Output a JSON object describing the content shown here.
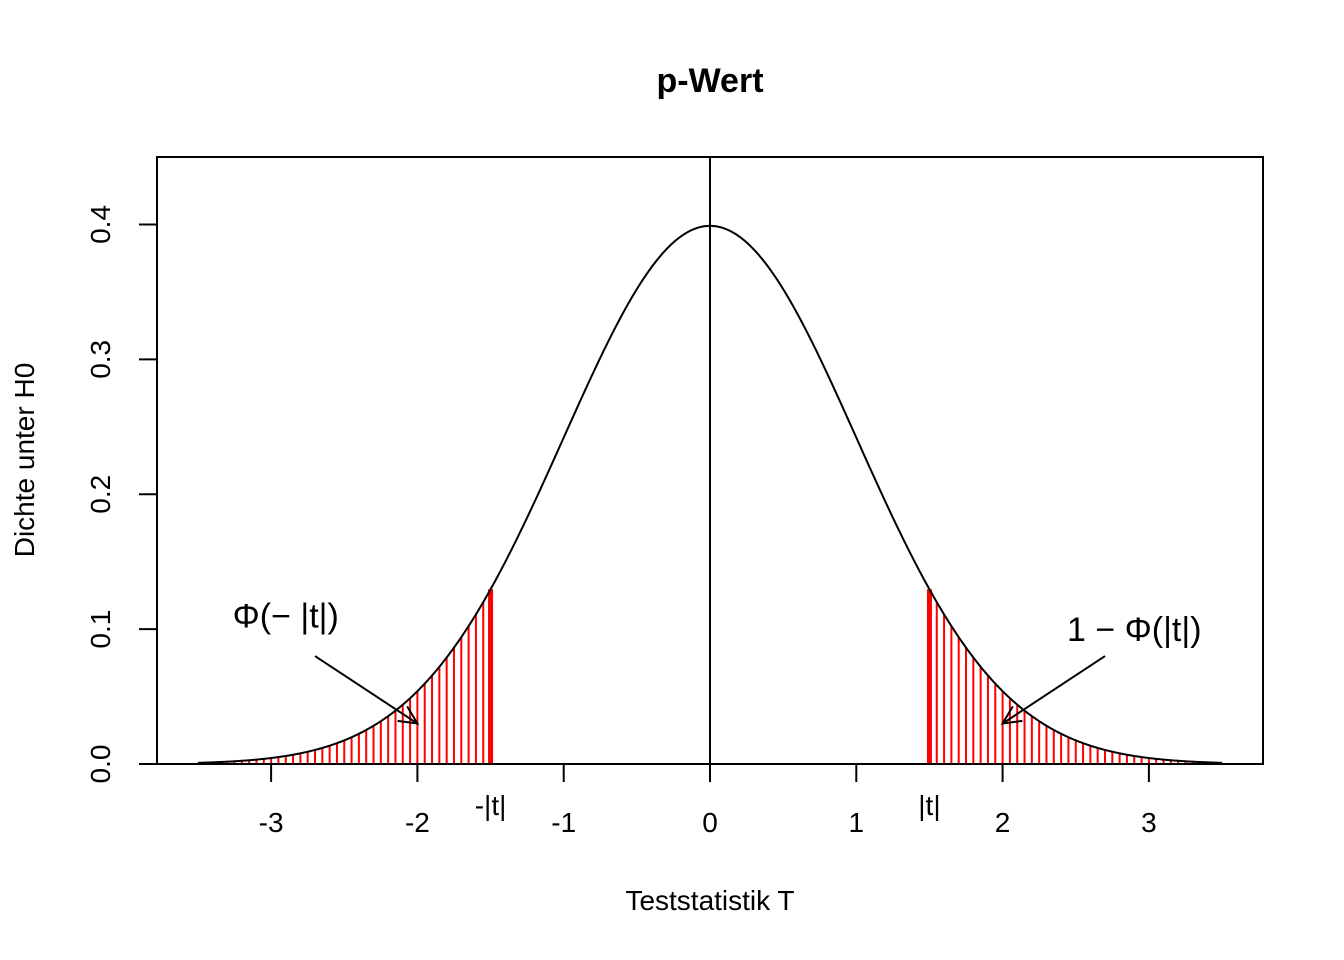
{
  "chart_data": {
    "type": "line",
    "title": "p-Wert",
    "xlabel": "Teststatistik T",
    "ylabel": "Dichte unter H0",
    "xlim": [
      -3.78,
      3.78
    ],
    "ylim": [
      0,
      0.45
    ],
    "grid": false,
    "legend": "none",
    "x_ticks": [
      -3,
      -2,
      -1,
      0,
      1,
      2,
      3
    ],
    "x_tick_labels": [
      "-3",
      "-2",
      "-1",
      "0",
      "1",
      "2",
      "3"
    ],
    "y_ticks": [
      0.0,
      0.1,
      0.2,
      0.3,
      0.4
    ],
    "y_tick_labels": [
      "0.0",
      "0.1",
      "0.2",
      "0.3",
      "0.4"
    ],
    "curve": {
      "function": "standard normal density",
      "x_range": [
        -3.5,
        3.5
      ],
      "color": "#000000"
    },
    "vertical_line_x": 0,
    "t_value": 1.5,
    "t_labels": {
      "negative": "-|t|",
      "positive": "|t|"
    },
    "shading": {
      "color": "#ff0000",
      "step": 0.05,
      "left_range": [
        -3.5,
        -1.5
      ],
      "right_range": [
        1.5,
        3.5
      ]
    },
    "annotations": [
      {
        "text": "Φ(− |t|)",
        "x": -2.9,
        "y": 0.11,
        "arrow_from": [
          -2.7,
          0.08
        ],
        "arrow_to": [
          -2.0,
          0.03
        ]
      },
      {
        "text": "1 − Φ(|t|)",
        "x": 2.9,
        "y": 0.1,
        "arrow_from": [
          2.7,
          0.08
        ],
        "arrow_to": [
          2.0,
          0.03
        ]
      }
    ]
  }
}
